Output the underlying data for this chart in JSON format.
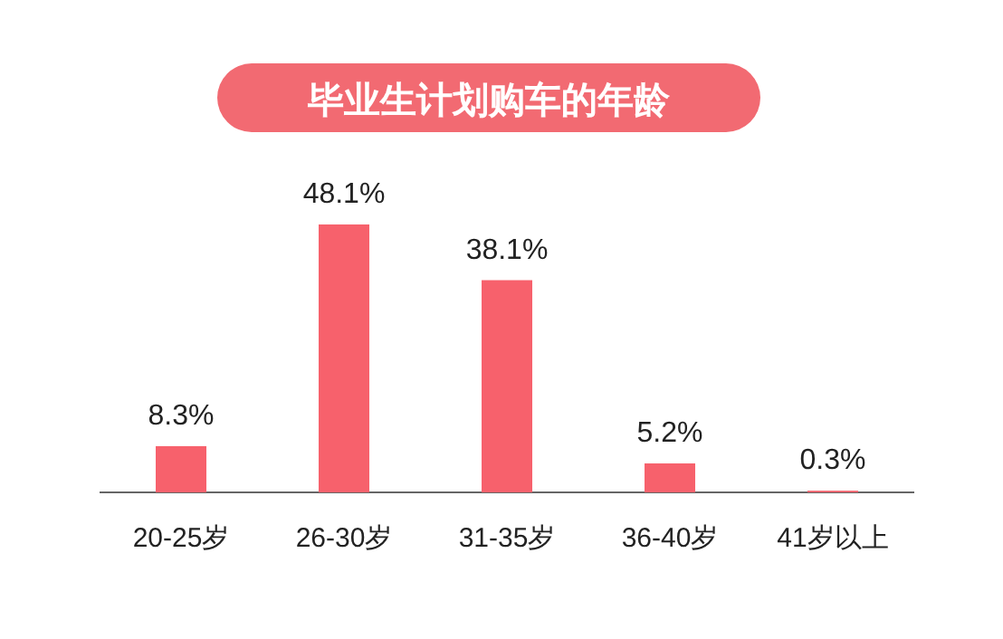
{
  "chart_data": {
    "type": "bar",
    "title": "毕业生计划购车的年龄",
    "categories": [
      "20-25岁",
      "26-30岁",
      "31-35岁",
      "36-40岁",
      "41岁以上"
    ],
    "values": [
      8.3,
      48.1,
      38.1,
      5.2,
      0.3
    ],
    "value_labels": [
      "8.3%",
      "48.1%",
      "38.1%",
      "5.2%",
      "0.3%"
    ],
    "color": "#f7616c"
  }
}
